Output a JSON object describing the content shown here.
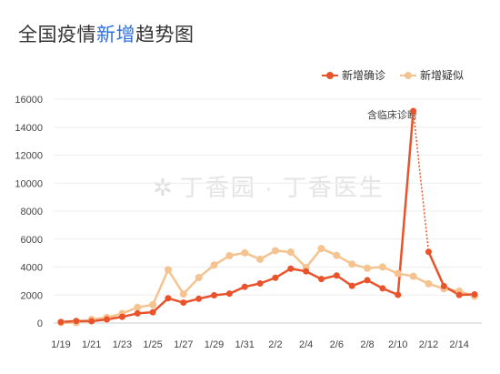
{
  "title": {
    "part1": "全国疫情",
    "highlight": "新增",
    "part2": "趋势图"
  },
  "watermark": {
    "text": "丁香园 · 丁香医生"
  },
  "colors": {
    "confirmed": "#e8532b",
    "suspected": "#f5c38f",
    "title_highlight": "#2f6fde",
    "dashed": "#e8532b"
  },
  "chart_data": {
    "type": "line",
    "x": [
      "1/19",
      "1/20",
      "1/21",
      "1/22",
      "1/23",
      "1/24",
      "1/25",
      "1/26",
      "1/27",
      "1/28",
      "1/29",
      "1/30",
      "1/31",
      "2/1",
      "2/2",
      "2/3",
      "2/4",
      "2/5",
      "2/6",
      "2/7",
      "2/8",
      "2/9",
      "2/10",
      "2/11",
      "2/12",
      "2/13",
      "2/14",
      "2/15"
    ],
    "x_tick_labels": [
      "1/19",
      "1/21",
      "1/23",
      "1/25",
      "1/27",
      "1/29",
      "1/31",
      "2/2",
      "2/4",
      "2/6",
      "2/8",
      "2/10",
      "2/12",
      "2/14"
    ],
    "y_tick_labels": [
      "0",
      "2000",
      "4000",
      "6000",
      "8000",
      "10000",
      "12000",
      "14000",
      "16000"
    ],
    "ylim": [
      0,
      16000
    ],
    "legend_position": "top-right",
    "series": [
      {
        "name": "新增确诊",
        "values": [
          77,
          149,
          131,
          259,
          444,
          688,
          769,
          1771,
          1459,
          1737,
          1982,
          2102,
          2590,
          2829,
          3235,
          3887,
          3694,
          3143,
          3399,
          2656,
          3062,
          2478,
          2015,
          15152,
          5090,
          2641,
          2009,
          2048
        ]
      },
      {
        "name": "新增疑似",
        "values": [
          27,
          26,
          257,
          392,
          680,
          1118,
          1309,
          3806,
          2077,
          3248,
          4148,
          4812,
          5019,
          4562,
          5173,
          5072,
          3971,
          5328,
          4833,
          4214,
          3916,
          4008,
          3536,
          3342,
          2807,
          2450,
          2277,
          1918
        ]
      }
    ],
    "annotation": {
      "text": "含临床诊断",
      "x": "2/12"
    }
  }
}
